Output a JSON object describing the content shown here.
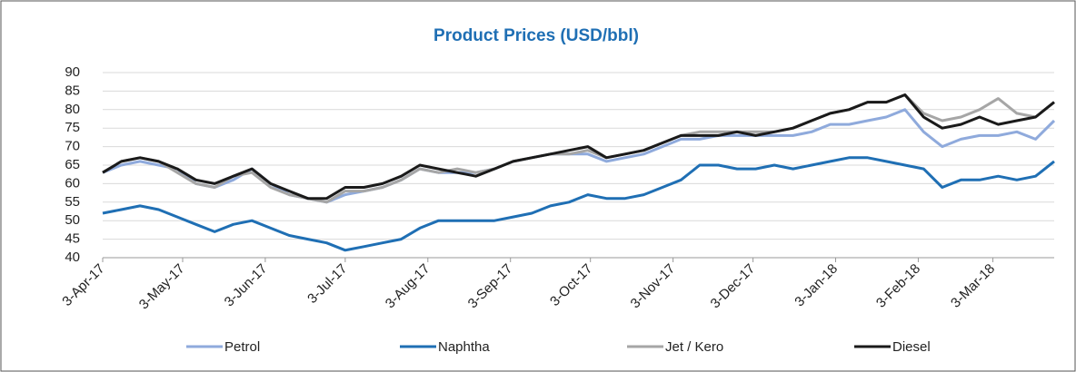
{
  "chart_data": {
    "type": "line",
    "title": "Product Prices (USD/bbl)",
    "x": [
      "2017-04-03",
      "2017-04-10",
      "2017-04-17",
      "2017-04-24",
      "2017-05-01",
      "2017-05-08",
      "2017-05-15",
      "2017-05-22",
      "2017-05-29",
      "2017-06-05",
      "2017-06-12",
      "2017-06-19",
      "2017-06-26",
      "2017-07-03",
      "2017-07-10",
      "2017-07-17",
      "2017-07-24",
      "2017-07-31",
      "2017-08-07",
      "2017-08-14",
      "2017-08-21",
      "2017-08-28",
      "2017-09-04",
      "2017-09-11",
      "2017-09-18",
      "2017-09-25",
      "2017-10-02",
      "2017-10-09",
      "2017-10-16",
      "2017-10-23",
      "2017-10-30",
      "2017-11-06",
      "2017-11-13",
      "2017-11-20",
      "2017-11-27",
      "2017-12-04",
      "2017-12-11",
      "2017-12-18",
      "2017-12-25",
      "2018-01-01",
      "2018-01-08",
      "2018-01-15",
      "2018-01-22",
      "2018-01-29",
      "2018-02-05",
      "2018-02-12",
      "2018-02-19",
      "2018-02-26",
      "2018-03-05",
      "2018-03-12",
      "2018-03-19",
      "2018-03-26"
    ],
    "series": [
      {
        "name": "Petrol",
        "color": "#8faadc",
        "values": [
          63,
          65,
          66,
          65,
          64,
          60,
          59,
          61,
          64,
          60,
          57,
          56,
          55,
          57,
          58,
          59,
          61,
          64,
          63,
          63,
          63,
          64,
          66,
          67,
          68,
          68,
          68,
          66,
          67,
          68,
          70,
          72,
          72,
          73,
          73,
          73,
          73,
          73,
          74,
          76,
          76,
          77,
          78,
          80,
          74,
          70,
          72,
          73,
          73,
          74,
          72,
          77
        ]
      },
      {
        "name": "Naphtha",
        "color": "#1f6fb4",
        "values": [
          52,
          53,
          54,
          53,
          51,
          49,
          47,
          49,
          50,
          48,
          46,
          45,
          44,
          42,
          43,
          44,
          45,
          48,
          50,
          50,
          50,
          50,
          51,
          52,
          54,
          55,
          57,
          56,
          56,
          57,
          59,
          61,
          65,
          65,
          64,
          64,
          65,
          64,
          65,
          66,
          67,
          67,
          66,
          65,
          64,
          59,
          61,
          61,
          62,
          61,
          62,
          66
        ]
      },
      {
        "name": "Jet / Kero",
        "color": "#a6a6a6",
        "values": [
          63,
          66,
          67,
          66,
          63,
          60,
          59,
          62,
          63,
          59,
          57,
          56,
          55,
          58,
          58,
          59,
          61,
          64,
          63,
          64,
          63,
          64,
          66,
          67,
          68,
          68,
          69,
          67,
          68,
          69,
          71,
          73,
          74,
          74,
          74,
          74,
          74,
          75,
          77,
          79,
          80,
          82,
          82,
          84,
          79,
          77,
          78,
          80,
          83,
          79,
          78,
          82
        ]
      },
      {
        "name": "Diesel",
        "color": "#1a1a1a",
        "values": [
          63,
          66,
          67,
          66,
          64,
          61,
          60,
          62,
          64,
          60,
          58,
          56,
          56,
          59,
          59,
          60,
          62,
          65,
          64,
          63,
          62,
          64,
          66,
          67,
          68,
          69,
          70,
          67,
          68,
          69,
          71,
          73,
          73,
          73,
          74,
          73,
          74,
          75,
          77,
          79,
          80,
          82,
          82,
          84,
          78,
          75,
          76,
          78,
          76,
          77,
          78,
          82
        ]
      }
    ],
    "xlim": [
      "2017-04-03",
      "2018-03-26"
    ],
    "xticks": [
      {
        "value": "2017-04-03",
        "label": "3-Apr-17"
      },
      {
        "value": "2017-05-03",
        "label": "3-May-17"
      },
      {
        "value": "2017-06-03",
        "label": "3-Jun-17"
      },
      {
        "value": "2017-07-03",
        "label": "3-Jul-17"
      },
      {
        "value": "2017-08-03",
        "label": "3-Aug-17"
      },
      {
        "value": "2017-09-03",
        "label": "3-Sep-17"
      },
      {
        "value": "2017-10-03",
        "label": "3-Oct-17"
      },
      {
        "value": "2017-11-03",
        "label": "3-Nov-17"
      },
      {
        "value": "2017-12-03",
        "label": "3-Dec-17"
      },
      {
        "value": "2018-01-03",
        "label": "3-Jan-18"
      },
      {
        "value": "2018-02-03",
        "label": "3-Feb-18"
      },
      {
        "value": "2018-03-03",
        "label": "3-Mar-18"
      }
    ],
    "ylim": [
      40,
      90
    ],
    "yticks": [
      40,
      45,
      50,
      55,
      60,
      65,
      70,
      75,
      80,
      85,
      90
    ],
    "grid": true,
    "legend": "bottom"
  }
}
